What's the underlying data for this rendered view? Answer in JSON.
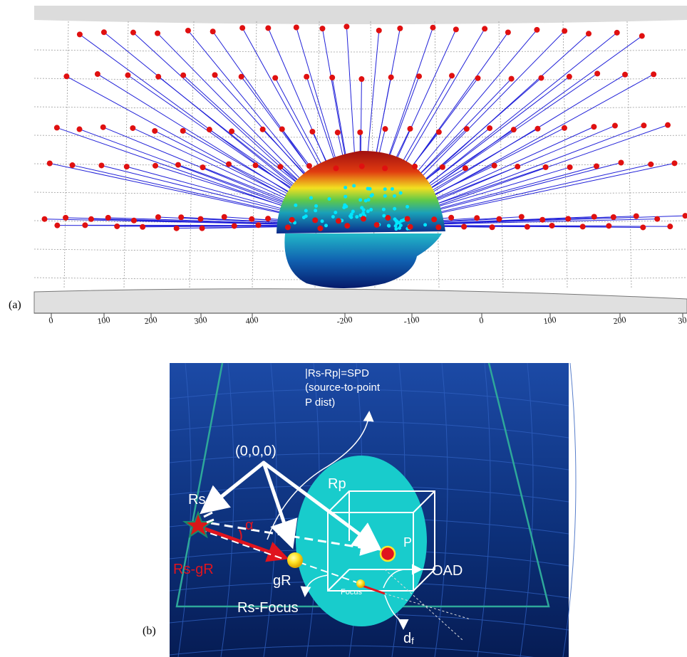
{
  "panels": {
    "a": {
      "label": "(a)"
    },
    "b": {
      "label": "(b)"
    }
  },
  "panel_a": {
    "x_ticks": [
      "0",
      "100",
      "200",
      "300",
      "400",
      "-200",
      "-100",
      "0",
      "100",
      "200",
      "30"
    ],
    "colors": {
      "detector": "#e01010",
      "ray": "#2020d8",
      "surface_point": "#00e6ff",
      "grid": "#9a9a9a"
    }
  },
  "panel_b": {
    "labels": {
      "spd_line1": "|Rs-Rp|=SPD",
      "spd_line2": "(source-to-point",
      "spd_line3": "P dist)",
      "origin": "(0,0,0)",
      "rp": "Rp",
      "rs": "Rs",
      "alpha": "α",
      "rs_gr": "Rs-gR",
      "gr": "gR",
      "p": "P",
      "focus": "Focus",
      "oad": "OAD",
      "rs_focus": "Rs-Focus",
      "df_main": "d",
      "df_sub": "f"
    },
    "colors": {
      "background": "#0c2f78",
      "ellipse": "#18cccc",
      "accent_red": "#e0141e",
      "point_yellow": "#ffe62a"
    }
  }
}
